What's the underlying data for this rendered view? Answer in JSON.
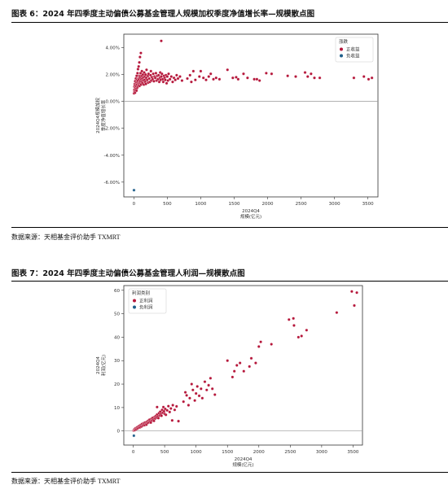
{
  "figure1": {
    "heading": "图表 6：2024 年四季度主动偏债公募基金管理人规模加权季度净值增长率—规模散点图",
    "source": "数据来源：天相基金评价助手 TXMRT"
  },
  "figure2": {
    "heading": "图表 7：2024 年四季度主动偏债公募基金管理人利润—规模散点图",
    "source": "数据来源：天相基金评价助手 TXMRT"
  },
  "colors": {
    "positive": "#b5163a",
    "negative": "#1f5f8b",
    "axis": "#333333",
    "zero_line": "#999999"
  },
  "chart_data": [
    {
      "type": "scatter",
      "xlabel_lines": [
        "2024Q4",
        "规模(亿元)"
      ],
      "ylabel_lines": [
        "2024Q4规模加权",
        "季度净值增长率"
      ],
      "xlim": [
        -150,
        3650
      ],
      "ylim": [
        -0.071,
        0.05
      ],
      "xticks": [
        0,
        500,
        1000,
        1500,
        2000,
        2500,
        3000,
        3500
      ],
      "yticks": [
        -0.06,
        -0.04,
        -0.02,
        0.0,
        0.02,
        0.04
      ],
      "ytick_labels": [
        "-6.00%",
        "-4.00%",
        "-2.00%",
        "0.00%",
        "2.00%",
        "4.00%"
      ],
      "zero_line": true,
      "legend": {
        "title": "涨跌",
        "position": "top-right",
        "items": [
          "正收益",
          "负收益"
        ]
      },
      "series": [
        {
          "name": "正收益",
          "color_key": "positive",
          "points": [
            [
              3,
              0.006
            ],
            [
              5,
              0.0085
            ],
            [
              8,
              0.011
            ],
            [
              10,
              0.0075
            ],
            [
              12,
              0.013
            ],
            [
              14,
              0.009
            ],
            [
              16,
              0.012
            ],
            [
              18,
              0.0065
            ],
            [
              20,
              0.015
            ],
            [
              22,
              0.0105
            ],
            [
              25,
              0.008
            ],
            [
              28,
              0.0135
            ],
            [
              30,
              0.017
            ],
            [
              32,
              0.0095
            ],
            [
              35,
              0.0115
            ],
            [
              38,
              0.014
            ],
            [
              40,
              0.008
            ],
            [
              42,
              0.019
            ],
            [
              45,
              0.0125
            ],
            [
              48,
              0.016
            ],
            [
              50,
              0.01
            ],
            [
              52,
              0.0145
            ],
            [
              55,
              0.021
            ],
            [
              58,
              0.011
            ],
            [
              60,
              0.0155
            ],
            [
              62,
              0.024
            ],
            [
              65,
              0.013
            ],
            [
              68,
              0.017
            ],
            [
              70,
              0.012
            ],
            [
              72,
              0.026
            ],
            [
              75,
              0.0165
            ],
            [
              78,
              0.0135
            ],
            [
              80,
              0.019
            ],
            [
              82,
              0.029
            ],
            [
              85,
              0.0115
            ],
            [
              88,
              0.0185
            ],
            [
              90,
              0.014
            ],
            [
              92,
              0.033
            ],
            [
              95,
              0.0175
            ],
            [
              98,
              0.015
            ],
            [
              100,
              0.021
            ],
            [
              105,
              0.036
            ],
            [
              108,
              0.0125
            ],
            [
              110,
              0.0165
            ],
            [
              115,
              0.019
            ],
            [
              118,
              0.0145
            ],
            [
              120,
              0.0225
            ],
            [
              125,
              0.017
            ],
            [
              130,
              0.0135
            ],
            [
              135,
              0.02
            ],
            [
              140,
              0.0155
            ],
            [
              145,
              0.018
            ],
            [
              150,
              0.0125
            ],
            [
              155,
              0.0215
            ],
            [
              160,
              0.016
            ],
            [
              165,
              0.0185
            ],
            [
              170,
              0.0145
            ],
            [
              175,
              0.02
            ],
            [
              180,
              0.013
            ],
            [
              185,
              0.0175
            ],
            [
              190,
              0.0235
            ],
            [
              200,
              0.016
            ],
            [
              210,
              0.019
            ],
            [
              215,
              0.014
            ],
            [
              220,
              0.0205
            ],
            [
              230,
              0.017
            ],
            [
              240,
              0.0145
            ],
            [
              250,
              0.0195
            ],
            [
              255,
              0.0225
            ],
            [
              260,
              0.0155
            ],
            [
              270,
              0.018
            ],
            [
              280,
              0.0165
            ],
            [
              290,
              0.0205
            ],
            [
              300,
              0.015
            ],
            [
              310,
              0.0185
            ],
            [
              320,
              0.0175
            ],
            [
              330,
              0.021
            ],
            [
              340,
              0.0155
            ],
            [
              350,
              0.019
            ],
            [
              360,
              0.0165
            ],
            [
              370,
              0.0195
            ],
            [
              380,
              0.0145
            ],
            [
              390,
              0.0175
            ],
            [
              395,
              0.0215
            ],
            [
              400,
              0.016
            ],
            [
              410,
              0.0185
            ],
            [
              420,
              0.0205
            ],
            [
              430,
              0.0165
            ],
            [
              440,
              0.0145
            ],
            [
              450,
              0.019
            ],
            [
              460,
              0.0175
            ],
            [
              470,
              0.016
            ],
            [
              480,
              0.0195
            ],
            [
              490,
              0.0135
            ],
            [
              500,
              0.0185
            ],
            [
              510,
              0.0155
            ],
            [
              520,
              0.0205
            ],
            [
              540,
              0.0165
            ],
            [
              560,
              0.0185
            ],
            [
              580,
              0.0145
            ],
            [
              600,
              0.0175
            ],
            [
              620,
              0.016
            ],
            [
              640,
              0.0195
            ],
            [
              660,
              0.017
            ],
            [
              690,
              0.0185
            ],
            [
              720,
              0.0155
            ],
            [
              410,
              0.045
            ],
            [
              800,
              0.017
            ],
            [
              840,
              0.0195
            ],
            [
              860,
              0.0145
            ],
            [
              890,
              0.0225
            ],
            [
              920,
              0.016
            ],
            [
              980,
              0.0185
            ],
            [
              1000,
              0.0225
            ],
            [
              1040,
              0.0175
            ],
            [
              1080,
              0.016
            ],
            [
              1120,
              0.0185
            ],
            [
              1150,
              0.0205
            ],
            [
              1190,
              0.0165
            ],
            [
              1230,
              0.0175
            ],
            [
              1280,
              0.0165
            ],
            [
              1400,
              0.0235
            ],
            [
              1480,
              0.0175
            ],
            [
              1530,
              0.018
            ],
            [
              1560,
              0.0165
            ],
            [
              1640,
              0.0205
            ],
            [
              1700,
              0.0175
            ],
            [
              1800,
              0.0165
            ],
            [
              1840,
              0.0165
            ],
            [
              1880,
              0.0155
            ],
            [
              1980,
              0.021
            ],
            [
              2060,
              0.0205
            ],
            [
              2300,
              0.019
            ],
            [
              2420,
              0.0185
            ],
            [
              2560,
              0.0215
            ],
            [
              2600,
              0.0185
            ],
            [
              2650,
              0.0205
            ],
            [
              2700,
              0.0175
            ],
            [
              2780,
              0.0175
            ],
            [
              3290,
              0.0175
            ],
            [
              3440,
              0.0185
            ],
            [
              3510,
              0.0165
            ],
            [
              3560,
              0.0175
            ]
          ]
        },
        {
          "name": "负收益",
          "color_key": "negative",
          "points": [
            [
              2,
              -0.066
            ]
          ]
        }
      ]
    },
    {
      "type": "scatter",
      "xlabel_lines": [
        "2024Q4",
        "规模(亿元)"
      ],
      "ylabel_lines": [
        "2024Q4",
        "利润(亿元)"
      ],
      "xlim": [
        -150,
        3650
      ],
      "ylim": [
        -6,
        62
      ],
      "xticks": [
        0,
        500,
        1000,
        1500,
        2000,
        2500,
        3000,
        3500
      ],
      "yticks": [
        0,
        10,
        20,
        30,
        40,
        50,
        60
      ],
      "ytick_labels": [
        "0",
        "10",
        "20",
        "30",
        "40",
        "50",
        "60"
      ],
      "zero_line": true,
      "legend": {
        "title": "利润类别",
        "position": "top-left",
        "items": [
          "正利润",
          "负利润"
        ]
      },
      "series": [
        {
          "name": "正利润",
          "color_key": "positive",
          "points": [
            [
              5,
              0.2
            ],
            [
              10,
              0.4
            ],
            [
              15,
              0.6
            ],
            [
              20,
              0.3
            ],
            [
              25,
              0.9
            ],
            [
              30,
              0.5
            ],
            [
              40,
              1.2
            ],
            [
              50,
              0.8
            ],
            [
              60,
              1.5
            ],
            [
              70,
              1.1
            ],
            [
              80,
              1.9
            ],
            [
              90,
              1.4
            ],
            [
              100,
              2.2
            ],
            [
              110,
              1.6
            ],
            [
              120,
              2.6
            ],
            [
              130,
              1.9
            ],
            [
              140,
              3.0
            ],
            [
              150,
              2.3
            ],
            [
              160,
              2.8
            ],
            [
              170,
              3.4
            ],
            [
              180,
              2.5
            ],
            [
              190,
              3.6
            ],
            [
              200,
              3.1
            ],
            [
              210,
              2.7
            ],
            [
              220,
              4.0
            ],
            [
              230,
              3.4
            ],
            [
              240,
              4.4
            ],
            [
              250,
              3.7
            ],
            [
              260,
              4.8
            ],
            [
              270,
              4.1
            ],
            [
              280,
              3.6
            ],
            [
              290,
              5.2
            ],
            [
              300,
              4.5
            ],
            [
              310,
              5.6
            ],
            [
              320,
              4.9
            ],
            [
              330,
              4.3
            ],
            [
              340,
              6.0
            ],
            [
              350,
              5.3
            ],
            [
              360,
              6.4
            ],
            [
              370,
              5.7
            ],
            [
              380,
              7.0
            ],
            [
              390,
              6.1
            ],
            [
              400,
              5.5
            ],
            [
              410,
              7.6
            ],
            [
              420,
              6.6
            ],
            [
              430,
              8.2
            ],
            [
              440,
              7.1
            ],
            [
              450,
              6.5
            ],
            [
              460,
              9.0
            ],
            [
              470,
              7.8
            ],
            [
              480,
              10.2
            ],
            [
              490,
              8.4
            ],
            [
              500,
              7.3
            ],
            [
              510,
              9.4
            ],
            [
              520,
              6.9
            ],
            [
              540,
              8.8
            ],
            [
              560,
              10.6
            ],
            [
              580,
              8.1
            ],
            [
              600,
              9.6
            ],
            [
              630,
              11.0
            ],
            [
              660,
              9.0
            ],
            [
              690,
              10.5
            ],
            [
              720,
              4.2
            ],
            [
              620,
              4.5
            ],
            [
              380,
              10.2
            ],
            [
              800,
              12.5
            ],
            [
              830,
              16.5
            ],
            [
              850,
              15.2
            ],
            [
              880,
              11.0
            ],
            [
              900,
              14.0
            ],
            [
              930,
              20.0
            ],
            [
              950,
              17.5
            ],
            [
              980,
              13.0
            ],
            [
              1000,
              16.0
            ],
            [
              1020,
              19.0
            ],
            [
              1050,
              15.0
            ],
            [
              1080,
              18.0
            ],
            [
              1100,
              14.0
            ],
            [
              1140,
              21.0
            ],
            [
              1170,
              17.5
            ],
            [
              1200,
              19.5
            ],
            [
              1230,
              22.5
            ],
            [
              1260,
              18.0
            ],
            [
              1300,
              15.5
            ],
            [
              1500,
              30.0
            ],
            [
              1580,
              23.0
            ],
            [
              1610,
              25.5
            ],
            [
              1650,
              28.0
            ],
            [
              1700,
              29.0
            ],
            [
              1760,
              25.5
            ],
            [
              1850,
              27.5
            ],
            [
              1880,
              31.0
            ],
            [
              1950,
              29.0
            ],
            [
              2000,
              36.0
            ],
            [
              2030,
              38.0
            ],
            [
              2200,
              37.0
            ],
            [
              2480,
              47.5
            ],
            [
              2550,
              48.0
            ],
            [
              2560,
              45.0
            ],
            [
              2630,
              40.0
            ],
            [
              2680,
              40.5
            ],
            [
              2760,
              43.0
            ],
            [
              3240,
              50.5
            ],
            [
              3480,
              59.5
            ],
            [
              3520,
              53.5
            ],
            [
              3560,
              59.0
            ]
          ]
        },
        {
          "name": "负利润",
          "color_key": "negative",
          "points": [
            [
              10,
              -2.0
            ]
          ]
        }
      ]
    }
  ]
}
